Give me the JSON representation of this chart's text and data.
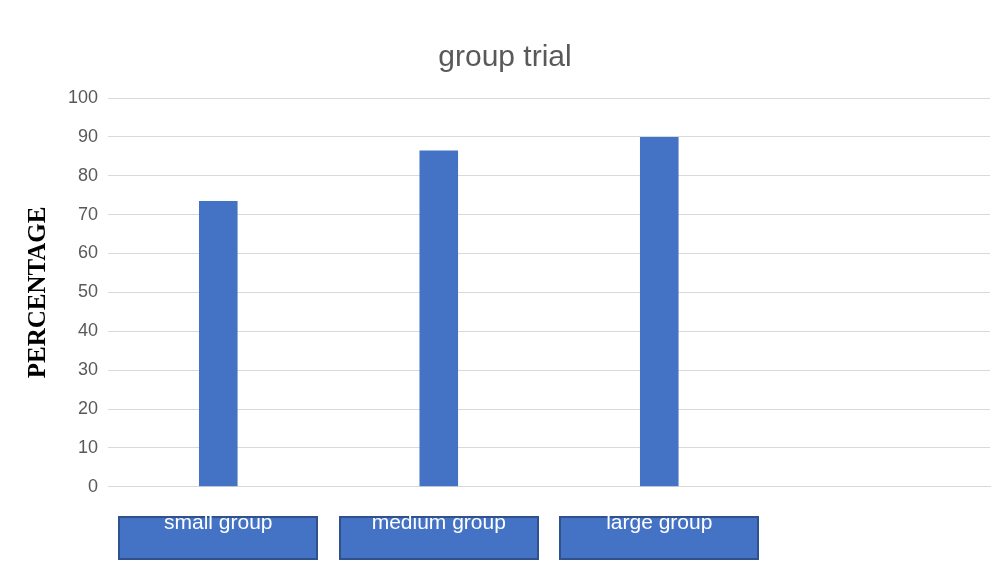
{
  "chart_data": {
    "type": "bar",
    "title": "group trial",
    "ylabel": "PERCENTAGE",
    "categories": [
      "small group",
      "medium group",
      "large group",
      null
    ],
    "values": [
      73.5,
      86.5,
      90,
      null
    ],
    "color": "#4472c4",
    "ylim": [
      0,
      100
    ],
    "yticks": [
      0,
      10,
      20,
      30,
      40,
      50,
      60,
      70,
      80,
      90,
      100
    ],
    "grid": "y",
    "legend": false
  }
}
